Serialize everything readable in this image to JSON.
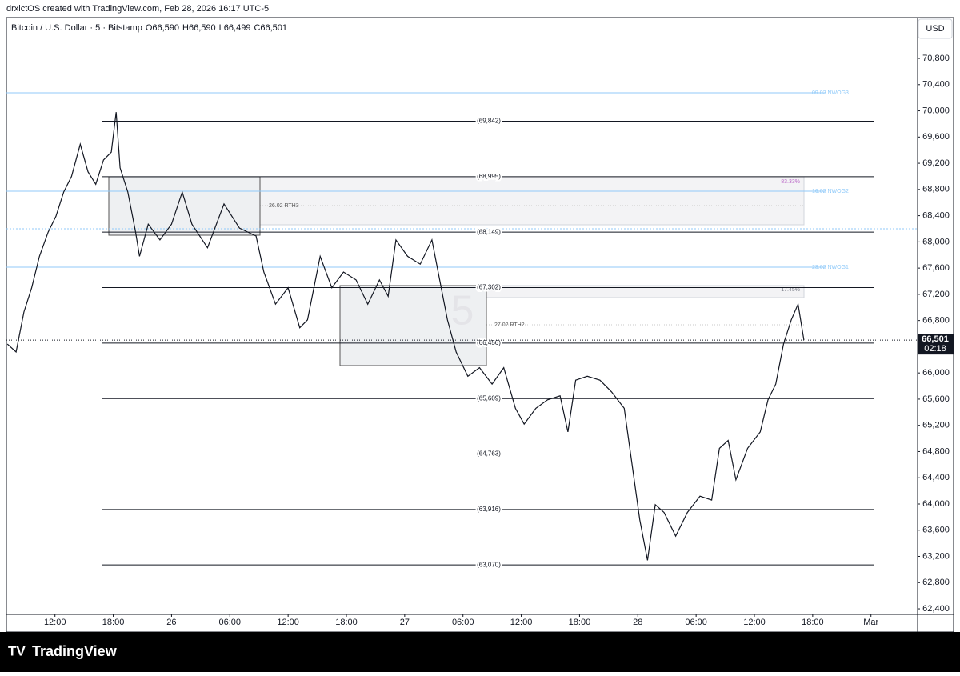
{
  "header": {
    "attribution": "drxictOS created with TradingView.com, Feb 28, 2026 16:17 UTC-5"
  },
  "legend": {
    "symbol": "Bitcoin / U.S. Dollar · 5 · Bitstamp",
    "ohlc": [
      {
        "key": "O",
        "value": "66,590"
      },
      {
        "key": "H",
        "value": "66,590"
      },
      {
        "key": "L",
        "value": "66,499"
      },
      {
        "key": "C",
        "value": "66,501"
      }
    ]
  },
  "chart_data": {
    "type": "line",
    "currency": "USD",
    "color": "#131722",
    "x": [
      -4.9,
      -4.0,
      -3.2,
      -2.4,
      -1.6,
      -0.7,
      0.1,
      0.9,
      1.7,
      2.6,
      3.4,
      4.2,
      5.0,
      5.8,
      6.3,
      6.7,
      7.5,
      8.3,
      8.7,
      9.6,
      10.8,
      12.0,
      13.1,
      14.1,
      15.7,
      17.4,
      19.0,
      20.7,
      21.5,
      22.7,
      24.0,
      25.2,
      26.0,
      27.3,
      28.5,
      29.7,
      31.0,
      32.2,
      33.4,
      34.3,
      35.1,
      36.3,
      37.6,
      38.8,
      39.6,
      40.4,
      41.3,
      42.5,
      43.7,
      45.0,
      46.2,
      47.4,
      48.3,
      49.5,
      50.7,
      52.0,
      52.8,
      53.6,
      54.8,
      56.1,
      57.3,
      58.6,
      59.4,
      60.2,
      61.0,
      61.8,
      62.7,
      63.9,
      65.1,
      66.4,
      67.6,
      68.4,
      69.3,
      70.1,
      71.3,
      72.6,
      73.4,
      74.2,
      75.0,
      75.8,
      76.5,
      77.1
    ],
    "values": [
      66440,
      66320,
      66930,
      67300,
      67780,
      68150,
      68390,
      68760,
      69000,
      69490,
      69070,
      68880,
      69250,
      69370,
      69980,
      69130,
      68760,
      68150,
      67780,
      68270,
      68030,
      68270,
      68760,
      68270,
      67910,
      68580,
      68210,
      68090,
      67540,
      67050,
      67300,
      66690,
      66810,
      67780,
      67300,
      67540,
      67420,
      67050,
      67420,
      67170,
      68030,
      67780,
      67660,
      68030,
      67420,
      66810,
      66320,
      65950,
      66080,
      65830,
      66080,
      65460,
      65220,
      65460,
      65590,
      65650,
      65100,
      65890,
      65950,
      65890,
      65710,
      65460,
      64610,
      63760,
      63140,
      63990,
      63870,
      63510,
      63870,
      64120,
      64060,
      64850,
      64970,
      64370,
      64850,
      65100,
      65590,
      65830,
      66440,
      66810,
      67050,
      66500
    ],
    "xlim": [
      -5,
      88.8
    ],
    "xticks": [
      {
        "value": 0,
        "label": "12:00"
      },
      {
        "value": 6,
        "label": "18:00"
      },
      {
        "value": 12,
        "label": "26"
      },
      {
        "value": 18,
        "label": "06:00"
      },
      {
        "value": 24,
        "label": "12:00"
      },
      {
        "value": 30,
        "label": "18:00"
      },
      {
        "value": 36,
        "label": "27"
      },
      {
        "value": 42,
        "label": "06:00"
      },
      {
        "value": 48,
        "label": "12:00"
      },
      {
        "value": 54,
        "label": "18:00"
      },
      {
        "value": 60,
        "label": "28"
      },
      {
        "value": 66,
        "label": "06:00"
      },
      {
        "value": 72,
        "label": "12:00"
      },
      {
        "value": 78,
        "label": "18:00"
      },
      {
        "value": 84,
        "label": "Mar"
      }
    ],
    "ylim": [
      62315,
      71423
    ],
    "yticks": [
      {
        "value": 62400,
        "label": "62,400"
      },
      {
        "value": 62800,
        "label": "62,800"
      },
      {
        "value": 63200,
        "label": "63,200"
      },
      {
        "value": 63600,
        "label": "63,600"
      },
      {
        "value": 64000,
        "label": "64,000"
      },
      {
        "value": 64400,
        "label": "64,400"
      },
      {
        "value": 64800,
        "label": "64,800"
      },
      {
        "value": 65200,
        "label": "65,200"
      },
      {
        "value": 65600,
        "label": "65,600"
      },
      {
        "value": 66000,
        "label": "66,000"
      },
      {
        "value": 66400,
        "label": "66,400"
      },
      {
        "value": 66800,
        "label": "66,800"
      },
      {
        "value": 67200,
        "label": "67,200"
      },
      {
        "value": 67600,
        "label": "67,600"
      },
      {
        "value": 68000,
        "label": "68,000"
      },
      {
        "value": 68400,
        "label": "68,400"
      },
      {
        "value": 68800,
        "label": "68,800"
      },
      {
        "value": 69200,
        "label": "69,200"
      },
      {
        "value": 69600,
        "label": "69,600"
      },
      {
        "value": 70000,
        "label": "70,000"
      },
      {
        "value": 70400,
        "label": "70,400"
      },
      {
        "value": 70800,
        "label": "70,800"
      }
    ],
    "levels": {
      "values": [
        69842,
        68995,
        68149,
        67302,
        66456,
        65609,
        64763,
        63916,
        63070
      ],
      "value_labels": [
        "(69,842)",
        "(68,995)",
        "(68,149)",
        "(67,302)",
        "(66,456)",
        "(65,609)",
        "(64,763)",
        "(63,916)",
        "(63,070)"
      ]
    },
    "zones": [
      {
        "label": "09.02 NWOG3",
        "value": 70275
      },
      {
        "label": "16.02 NWOG2",
        "value": 68773
      },
      {
        "label": "23.02 NWOG1",
        "value": 67613
      }
    ],
    "zone_color": "#90caf9",
    "boxes": [
      {
        "label": "26.02 RTH3"
      },
      {
        "label": "27.02 RTH2"
      }
    ],
    "band_labels": [
      "83.33%",
      "17.45%"
    ],
    "watermark": "5",
    "last_price": {
      "value": 66501,
      "label": "66,501",
      "countdown": "02:18"
    }
  },
  "footer": {
    "brand": "TradingView"
  }
}
